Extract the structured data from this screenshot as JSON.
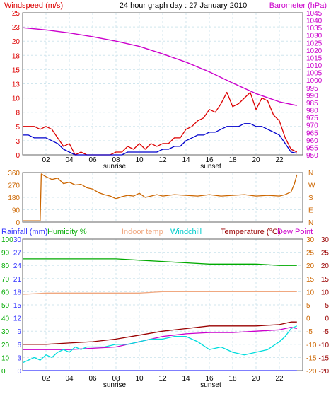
{
  "chart_data": [
    {
      "type": "line",
      "title": "24 hour graph day : 27 January 2010",
      "ylabel_left": "Windspeed (m/s)",
      "ylabel_right": "Barometer (hPa)",
      "ylim_left": [
        0,
        25
      ],
      "ylim_right": [
        950,
        1045
      ],
      "yticks_left": [
        "25",
        "23",
        "20",
        "18",
        "15",
        "13",
        "10",
        "8",
        "5",
        "3",
        "0"
      ],
      "yticks_right": [
        "1045",
        "1040",
        "1035",
        "1030",
        "1025",
        "1020",
        "1015",
        "1010",
        "1005",
        "1000",
        "995",
        "990",
        "985",
        "980",
        "975",
        "970",
        "965",
        "960",
        "955",
        "950"
      ],
      "xticks": [
        "02",
        "04",
        "06",
        "08",
        "10",
        "12",
        "14",
        "16",
        "18",
        "20",
        "22"
      ],
      "sun_labels": {
        "sunrise": "sunrise",
        "sunset": "sunset"
      },
      "series": [
        {
          "color": "#dd0000",
          "x": [
            0,
            0.5,
            1,
            1.5,
            2,
            2.5,
            3,
            3.5,
            4,
            4.5,
            5,
            5.5,
            6,
            6.5,
            7,
            7.5,
            8,
            8.5,
            9,
            9.5,
            10,
            10.5,
            11,
            11.5,
            12,
            12.5,
            13,
            13.5,
            14,
            14.5,
            15,
            15.5,
            16,
            16.5,
            17,
            17.5,
            18,
            18.5,
            19,
            19.5,
            20,
            20.5,
            21,
            21.5,
            22,
            22.5,
            23,
            23.5
          ],
          "y": [
            5,
            5,
            5,
            4.5,
            5,
            4.5,
            3,
            1.5,
            2,
            0,
            0.5,
            0,
            0,
            0,
            0,
            0,
            0.5,
            0.5,
            1.5,
            1,
            2,
            1,
            2,
            1.5,
            2,
            2,
            3,
            3,
            4.5,
            5,
            6,
            6.5,
            8,
            7.5,
            9,
            11,
            8.5,
            9,
            10,
            11,
            8,
            10,
            9.5,
            7,
            6,
            3,
            1,
            0.5
          ]
        },
        {
          "color": "#0000cc",
          "x": [
            0,
            0.5,
            1,
            1.5,
            2,
            2.5,
            3,
            3.5,
            4,
            4.5,
            5,
            5.5,
            6,
            6.5,
            7,
            7.5,
            8,
            8.5,
            9,
            9.5,
            10,
            10.5,
            11,
            11.5,
            12,
            12.5,
            13,
            13.5,
            14,
            14.5,
            15,
            15.5,
            16,
            16.5,
            17,
            17.5,
            18,
            18.5,
            19,
            19.5,
            20,
            20.5,
            21,
            21.5,
            22,
            22.5,
            23,
            23.5
          ],
          "y": [
            3.5,
            3.5,
            3,
            3,
            3,
            2.5,
            2,
            1,
            0.5,
            0,
            0,
            0,
            0,
            0,
            0,
            0,
            0,
            0,
            0.5,
            0.5,
            0.5,
            0.5,
            0.5,
            0.5,
            1,
            1,
            1.5,
            1.5,
            2.5,
            3,
            3.5,
            3.5,
            4,
            4,
            4.5,
            5,
            5,
            5,
            5.5,
            5.5,
            5,
            5,
            4.5,
            4,
            3.5,
            2,
            0.5,
            0.3
          ]
        },
        {
          "color": "#cc00cc",
          "axis": "right",
          "x": [
            0,
            2,
            4,
            6,
            8,
            10,
            12,
            14,
            16,
            18,
            20,
            22,
            23.5
          ],
          "y": [
            1035,
            1033.5,
            1031.5,
            1029,
            1026,
            1022.5,
            1017.5,
            1012,
            1005.5,
            998,
            991,
            985.5,
            983
          ]
        }
      ]
    },
    {
      "type": "line",
      "ylim": [
        0,
        360
      ],
      "yticks_left": [
        "360",
        "270",
        "180",
        "90",
        "0"
      ],
      "yticks_right": [
        "N",
        "W",
        "S",
        "E",
        "N"
      ],
      "series": [
        {
          "color": "#cc6600",
          "x": [
            0,
            0.8,
            1.5,
            1.6,
            2,
            2.5,
            3,
            3.5,
            4,
            4.5,
            5,
            5.5,
            6,
            6.5,
            7,
            7.5,
            8,
            8.5,
            9,
            9.5,
            10,
            10.5,
            11,
            11.5,
            12,
            13,
            14,
            15,
            16,
            17,
            18,
            19,
            20,
            21,
            22,
            22.5,
            23,
            23.3,
            23.5
          ],
          "y": [
            10,
            10,
            10,
            350,
            330,
            310,
            320,
            280,
            290,
            270,
            275,
            250,
            240,
            215,
            200,
            190,
            170,
            185,
            195,
            190,
            210,
            180,
            190,
            200,
            190,
            200,
            195,
            190,
            200,
            190,
            195,
            200,
            190,
            195,
            190,
            200,
            220,
            280,
            345
          ]
        }
      ]
    },
    {
      "type": "line",
      "legend": [
        "Rainfall (mm)",
        "Humidity %",
        "Indoor temp",
        "Windchill",
        "Temperature (°C)",
        "Dew Point"
      ],
      "ylim_humidity": [
        0,
        100
      ],
      "ylim_rain": [
        0,
        30
      ],
      "ylim_temp": [
        -20,
        30
      ],
      "yticks_humidity": [
        "100",
        "90",
        "80",
        "70",
        "60",
        "50",
        "40",
        "30",
        "20",
        "10",
        "0"
      ],
      "yticks_rain": [
        "30",
        "27",
        "24",
        "21",
        "18",
        "15",
        "12",
        "9",
        "6",
        "3",
        "0"
      ],
      "yticks_temp": [
        "30",
        "25",
        "20",
        "15",
        "10",
        "5",
        "0",
        "-5",
        "-10",
        "-15",
        "-20"
      ],
      "series": [
        {
          "name": "Humidity %",
          "color": "#00aa00",
          "axis": "humidity",
          "x": [
            0,
            4,
            8,
            10,
            12,
            14,
            16,
            18,
            20,
            22,
            23.5
          ],
          "y": [
            85,
            85,
            85,
            84,
            83,
            82,
            81,
            81,
            81,
            80,
            80
          ]
        },
        {
          "name": "Indoor temp",
          "color": "#f0a880",
          "axis": "temp",
          "x": [
            0,
            2,
            4,
            6,
            8,
            10,
            12,
            14,
            16,
            18,
            20,
            22,
            23.5
          ],
          "y": [
            9,
            9.5,
            9.5,
            9.5,
            9.5,
            9.5,
            10,
            10,
            10,
            10,
            10,
            10,
            10
          ]
        },
        {
          "name": "Temperature (°C)",
          "color": "#990000",
          "axis": "temp",
          "x": [
            0,
            2,
            4,
            6,
            8,
            10,
            12,
            14,
            16,
            18,
            20,
            22,
            23,
            23.5
          ],
          "y": [
            -10,
            -10,
            -9.5,
            -9,
            -8,
            -6.5,
            -5,
            -4,
            -3,
            -3,
            -3,
            -2.5,
            -1.5,
            -1.5
          ]
        },
        {
          "name": "Dew Point",
          "color": "#cc00cc",
          "axis": "temp",
          "x": [
            0,
            2,
            4,
            6,
            8,
            10,
            12,
            14,
            16,
            18,
            20,
            22,
            23,
            23.5
          ],
          "y": [
            -12,
            -12,
            -12,
            -11.5,
            -11,
            -9,
            -7,
            -6,
            -5.5,
            -5.5,
            -5,
            -4.5,
            -3.5,
            -4
          ]
        },
        {
          "name": "Windchill",
          "color": "#00dddd",
          "axis": "temp",
          "x": [
            0,
            0.5,
            1,
            1.5,
            2,
            2.5,
            3,
            3.5,
            4,
            4.5,
            5,
            5.5,
            6,
            7,
            8,
            9,
            10,
            11,
            12,
            13,
            14,
            15,
            16,
            17,
            18,
            19,
            20,
            21,
            22,
            22.5,
            23,
            23.5
          ],
          "y": [
            -17,
            -16,
            -15,
            -16,
            -14,
            -15,
            -13,
            -12,
            -13,
            -11,
            -12,
            -11,
            -11,
            -11,
            -10,
            -10,
            -9,
            -8,
            -8,
            -7,
            -7,
            -9,
            -12,
            -11,
            -13,
            -14,
            -13,
            -12,
            -9,
            -7,
            -4,
            -3
          ]
        },
        {
          "name": "Rainfall (mm)",
          "color": "#3333ff",
          "axis": "rain",
          "x": [
            0,
            23.5
          ],
          "y": [
            0,
            0
          ]
        }
      ]
    }
  ]
}
